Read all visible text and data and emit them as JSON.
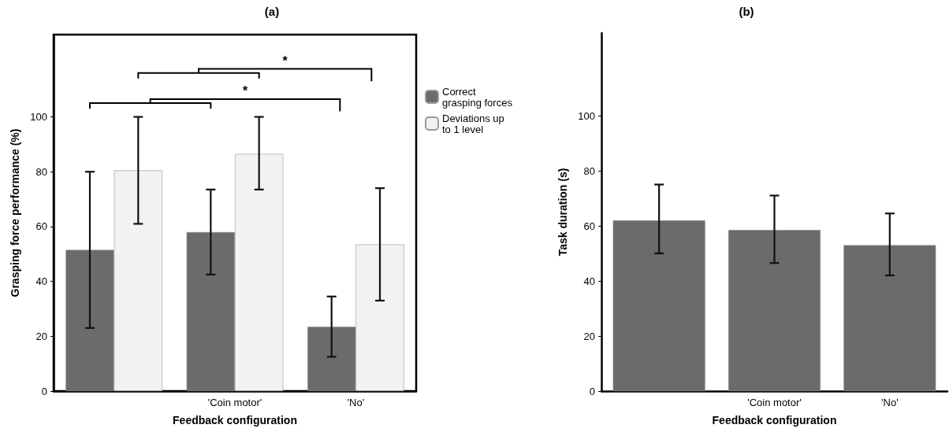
{
  "chart_data": [
    {
      "type": "bar",
      "title": "(a)",
      "xlabel": "Feedback configuration",
      "ylabel": "Grasping force performance (%)",
      "categories": [
        null,
        "'Coin motor'",
        "'No'"
      ],
      "series": [
        {
          "name": "Correct grasping forces",
          "color": "#6b6b6b",
          "values": [
            51.5,
            58,
            23.5
          ],
          "errors": [
            [
              23,
              80
            ],
            [
              42.5,
              73.5
            ],
            [
              12.5,
              34.5
            ]
          ]
        },
        {
          "name": "Deviations up to 1 level",
          "color": "#f2f2f2",
          "values": [
            80.5,
            86.5,
            53.5
          ],
          "errors": [
            [
              61,
              100
            ],
            [
              73.5,
              100
            ],
            [
              33,
              74
            ]
          ]
        }
      ],
      "ylim": [
        0,
        130
      ],
      "yticks": [
        0,
        20,
        40,
        60,
        80,
        100
      ],
      "legend": "right",
      "annotations": [
        "*",
        "*"
      ]
    },
    {
      "type": "bar",
      "title": "(b)",
      "xlabel": "Feedback configuration",
      "ylabel": "Task duration (s)",
      "categories": [
        null,
        "'Coin motor'",
        "'No'"
      ],
      "series": [
        {
          "color": "#6b6b6b",
          "values": [
            62,
            58.5,
            53
          ],
          "errors": [
            [
              50,
              75
            ],
            [
              46.5,
              71
            ],
            [
              42,
              64.5
            ]
          ]
        }
      ],
      "ylim": [
        0,
        130
      ],
      "yticks": [
        0,
        20,
        40,
        60,
        80,
        100
      ]
    }
  ]
}
